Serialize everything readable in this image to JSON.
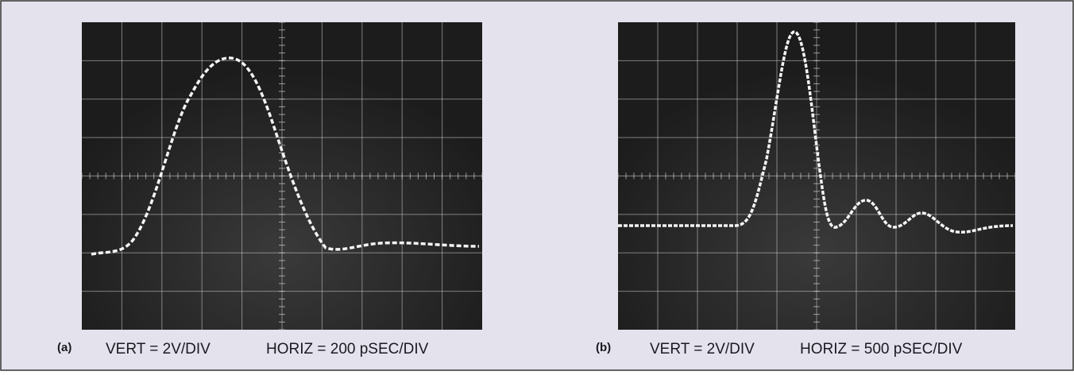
{
  "figure": {
    "panels": [
      {
        "label": "(a)",
        "vertical": "VERT = 2V/DIV",
        "horizontal": "HORIZ = 200 pSEC/DIV"
      },
      {
        "label": "(b)",
        "vertical": "VERT = 2V/DIV",
        "horizontal": "HORIZ = 500 pSEC/DIV"
      }
    ]
  }
}
